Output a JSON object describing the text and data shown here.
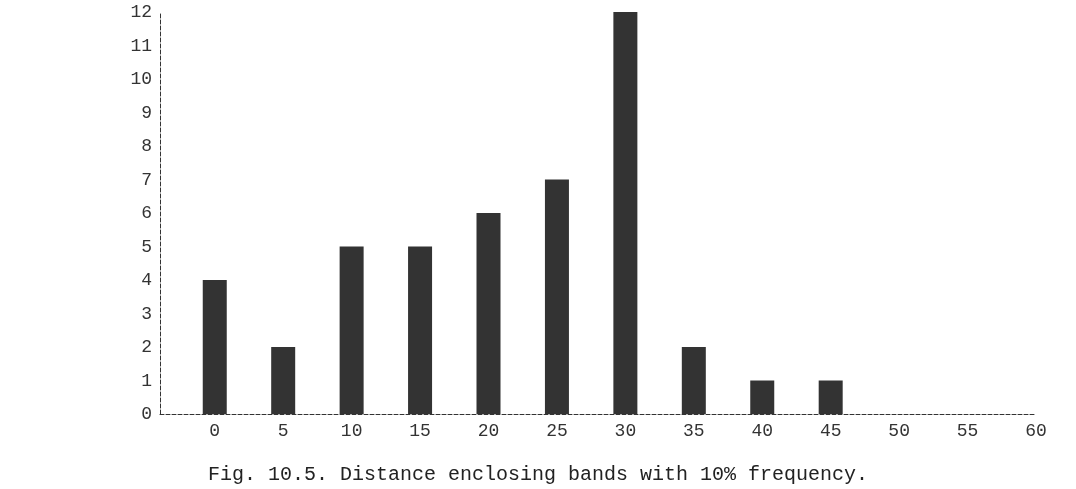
{
  "chart_data": {
    "type": "bar",
    "title": "Fig. 10.5. Distance enclosing bands with 10% frequency.",
    "x": [
      0,
      5,
      10,
      15,
      20,
      25,
      30,
      35,
      40,
      45
    ],
    "values": [
      4,
      2,
      5,
      5,
      6,
      7,
      12,
      2,
      1,
      1
    ],
    "color": "#333333",
    "xlim": [
      -4,
      60
    ],
    "xticks": [
      0,
      5,
      10,
      15,
      20,
      25,
      30,
      35,
      40,
      45,
      50,
      55,
      60
    ],
    "ylim": [
      0,
      12
    ],
    "yticks": [
      0,
      1,
      2,
      3,
      4,
      5,
      6,
      7,
      8,
      9,
      10,
      11,
      12
    ]
  }
}
